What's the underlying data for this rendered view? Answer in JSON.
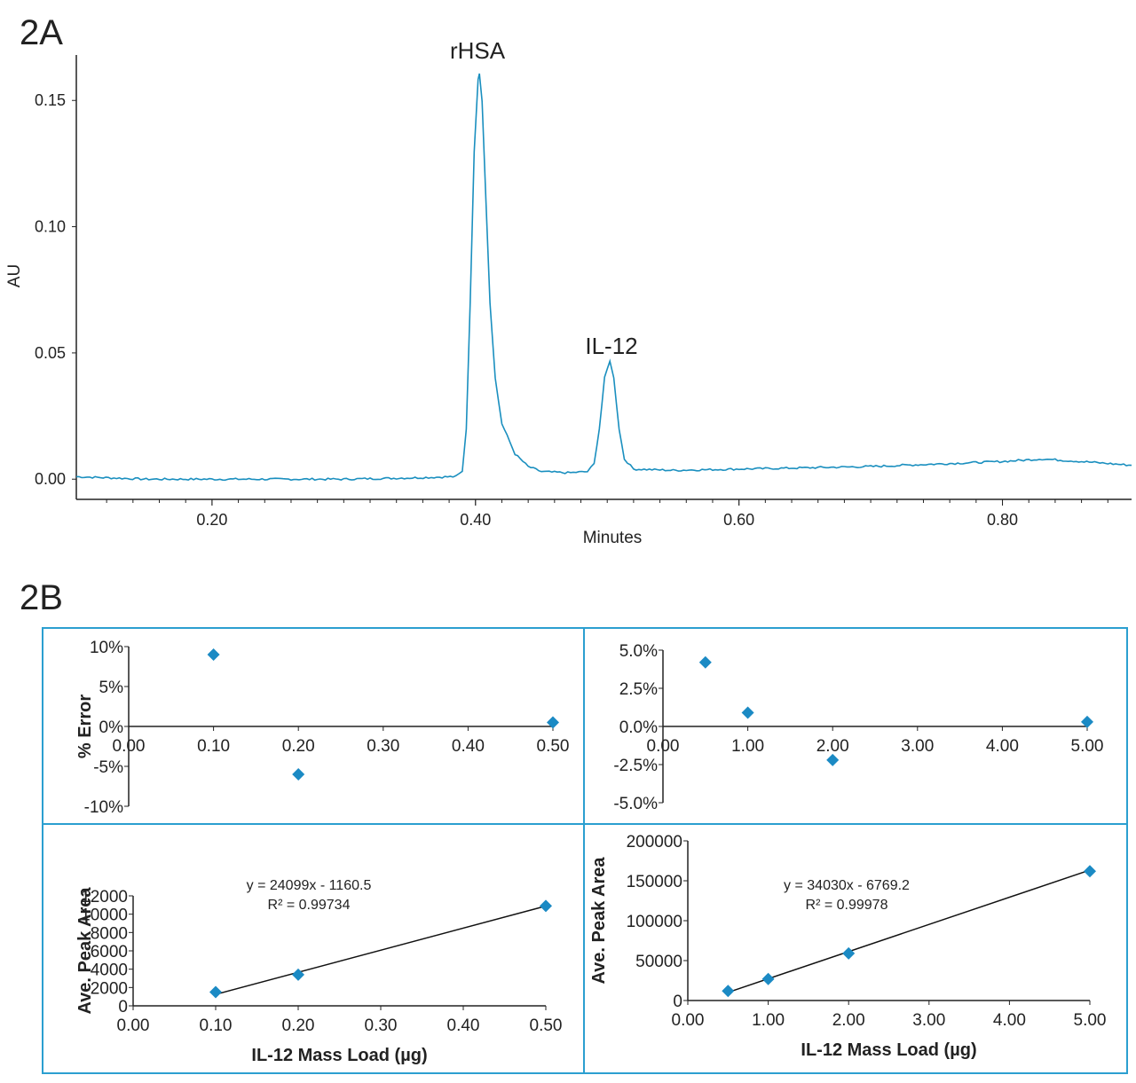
{
  "chart_data": [
    {
      "panel": "2A",
      "type": "line",
      "xlabel": "Minutes",
      "ylabel": "AU",
      "xlim": [
        0.097,
        0.898
      ],
      "ylim": [
        -0.008,
        0.168
      ],
      "xticks": [
        "0.20",
        "0.40",
        "0.60",
        "0.80"
      ],
      "xtick_values": [
        0.2,
        0.4,
        0.6,
        0.8
      ],
      "yticks": [
        "0.00",
        "0.05",
        "0.10",
        "0.15"
      ],
      "ytick_values": [
        0,
        0.05,
        0.1,
        0.15
      ],
      "line_color": "#1a8fbf",
      "annotations": [
        {
          "text": "rHSA",
          "x": 0.403,
          "y": 0.161
        },
        {
          "text": "IL-12",
          "x": 0.502,
          "y": 0.047
        }
      ],
      "x": [
        0.097,
        0.15,
        0.2,
        0.25,
        0.3,
        0.35,
        0.385,
        0.39,
        0.393,
        0.396,
        0.399,
        0.402,
        0.403,
        0.405,
        0.408,
        0.411,
        0.415,
        0.42,
        0.43,
        0.44,
        0.45,
        0.47,
        0.485,
        0.49,
        0.494,
        0.498,
        0.502,
        0.505,
        0.509,
        0.513,
        0.52,
        0.55,
        0.6,
        0.65,
        0.7,
        0.75,
        0.8,
        0.83,
        0.86,
        0.898
      ],
      "y": [
        0.001,
        0.0,
        0.0,
        0.0,
        0.0,
        0.0005,
        0.001,
        0.003,
        0.02,
        0.07,
        0.13,
        0.158,
        0.161,
        0.15,
        0.11,
        0.07,
        0.04,
        0.022,
        0.01,
        0.005,
        0.003,
        0.0025,
        0.003,
        0.006,
        0.02,
        0.04,
        0.047,
        0.04,
        0.02,
        0.008,
        0.004,
        0.0035,
        0.004,
        0.0045,
        0.005,
        0.006,
        0.007,
        0.008,
        0.007,
        0.0055
      ]
    },
    {
      "panel": "2B-top-left",
      "type": "scatter",
      "ylabel": "% Error",
      "xlim": [
        0,
        0.5
      ],
      "ylim": [
        -10,
        10
      ],
      "xticks": [
        "0.00",
        "0.10",
        "0.20",
        "0.30",
        "0.40",
        "0.50"
      ],
      "yticks": [
        "10%",
        "5%",
        "0%",
        "-5%",
        "-10%"
      ],
      "x": [
        0.1,
        0.2,
        0.5
      ],
      "y": [
        9.0,
        -6.0,
        0.5
      ]
    },
    {
      "panel": "2B-top-right",
      "type": "scatter",
      "xlim": [
        0,
        5
      ],
      "ylim": [
        -5,
        5
      ],
      "xticks": [
        "0.00",
        "1.00",
        "2.00",
        "3.00",
        "4.00",
        "5.00"
      ],
      "yticks": [
        "5.0%",
        "2.5%",
        "0.0%",
        "-2.5%",
        "-5.0%"
      ],
      "x": [
        0.5,
        1,
        2,
        5
      ],
      "y": [
        4.2,
        0.9,
        -2.2,
        0.3
      ]
    },
    {
      "panel": "2B-bottom-left",
      "type": "scatter",
      "xlabel": "IL-12 Mass Load (µg)",
      "ylabel": "Ave. Peak Area",
      "xlim": [
        0,
        0.5
      ],
      "ylim": [
        0,
        12000
      ],
      "xticks": [
        "0.00",
        "0.10",
        "0.20",
        "0.30",
        "0.40",
        "0.50"
      ],
      "yticks": [
        "12000",
        "10000",
        "8000",
        "6000",
        "4000",
        "2000",
        "0"
      ],
      "x": [
        0.1,
        0.2,
        0.5
      ],
      "y": [
        1500,
        3400,
        10900
      ],
      "trendline": {
        "slope": 24099,
        "intercept": -1160.5
      },
      "equation": "y = 24099x - 1160.5",
      "r2": "R² = 0.99734"
    },
    {
      "panel": "2B-bottom-right",
      "type": "scatter",
      "xlabel": "IL-12 Mass Load (µg)",
      "ylabel": "Ave. Peak Area",
      "xlim": [
        0,
        5
      ],
      "ylim": [
        0,
        200000
      ],
      "xticks": [
        "0.00",
        "1.00",
        "2.00",
        "3.00",
        "4.00",
        "5.00"
      ],
      "yticks": [
        "200000",
        "150000",
        "100000",
        "50000",
        "0"
      ],
      "x": [
        0.5,
        1,
        2,
        5
      ],
      "y": [
        12000,
        27000,
        59000,
        162000
      ],
      "trendline": {
        "slope": 34030,
        "intercept": -6769.2
      },
      "equation": "y = 34030x - 6769.2",
      "r2": "R² = 0.99978"
    }
  ],
  "labels": {
    "panel_a": "2A",
    "panel_b": "2B"
  },
  "colors": {
    "marker": "#1b8ac4",
    "frame": "#2b9fd0",
    "axis": "#222222"
  }
}
